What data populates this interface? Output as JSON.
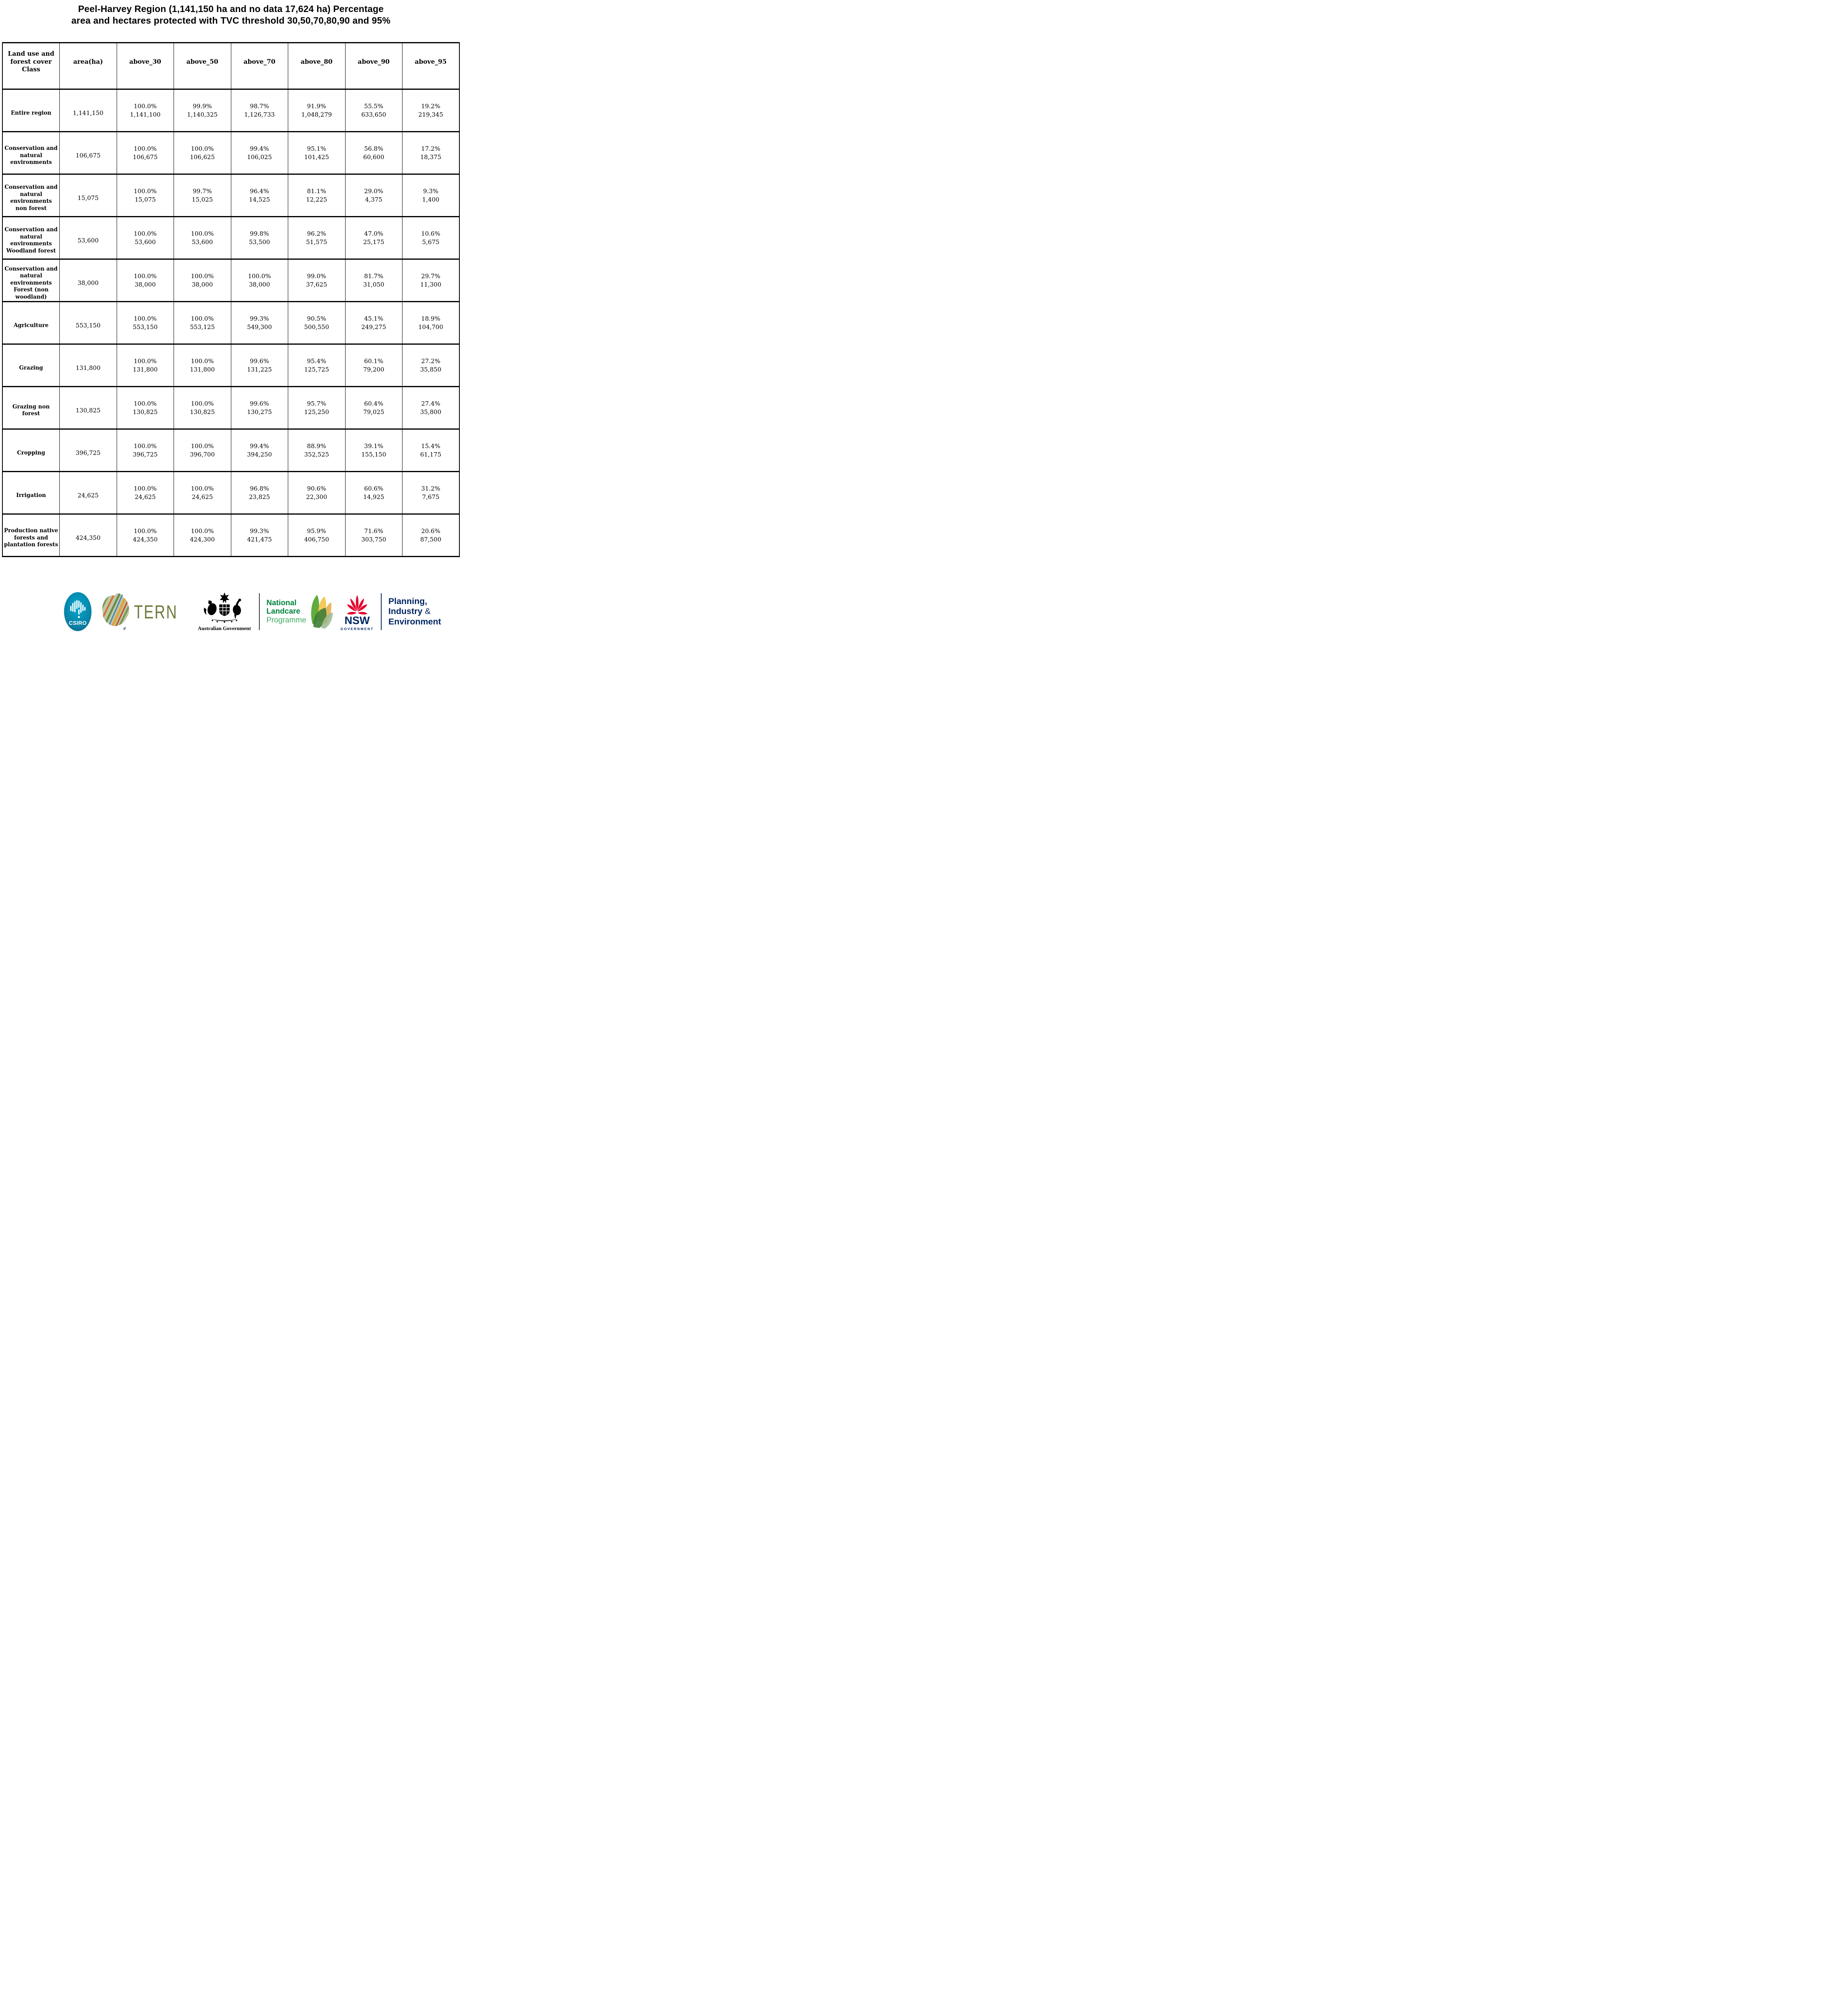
{
  "title": {
    "line1": "Peel-Harvey Region (1,141,150 ha and no data 17,624 ha) Percentage",
    "line2": "area and hectares protected with TVC threshold 30,50,70,80,90 and 95%"
  },
  "chart_data": {
    "type": "table",
    "title": "Peel-Harvey Region (1,141,150 ha and no data 17,624 ha) Percentage area and hectares protected with TVC threshold 30,50,70,80,90 and 95%",
    "columns": [
      "Land use and forest cover Class",
      "area(ha)",
      "above_30",
      "above_50",
      "above_70",
      "above_80",
      "above_90",
      "above_95"
    ],
    "rows": [
      {
        "label": "Entire region",
        "area_ha": "1,141,150",
        "values": [
          {
            "pct": "100.0%",
            "ha": "1,141,100"
          },
          {
            "pct": "99.9%",
            "ha": "1,140,325"
          },
          {
            "pct": "98.7%",
            "ha": "1,126,733"
          },
          {
            "pct": "91.9%",
            "ha": "1,048,279"
          },
          {
            "pct": "55.5%",
            "ha": "633,650"
          },
          {
            "pct": "19.2%",
            "ha": "219,345"
          }
        ]
      },
      {
        "label": "Conservation and natural environments",
        "area_ha": "106,675",
        "values": [
          {
            "pct": "100.0%",
            "ha": "106,675"
          },
          {
            "pct": "100.0%",
            "ha": "106,625"
          },
          {
            "pct": "99.4%",
            "ha": "106,025"
          },
          {
            "pct": "95.1%",
            "ha": "101,425"
          },
          {
            "pct": "56.8%",
            "ha": "60,600"
          },
          {
            "pct": "17.2%",
            "ha": "18,375"
          }
        ]
      },
      {
        "label": "Conservation and natural environments non forest",
        "area_ha": "15,075",
        "values": [
          {
            "pct": "100.0%",
            "ha": "15,075"
          },
          {
            "pct": "99.7%",
            "ha": "15,025"
          },
          {
            "pct": "96.4%",
            "ha": "14,525"
          },
          {
            "pct": "81.1%",
            "ha": "12,225"
          },
          {
            "pct": "29.0%",
            "ha": "4,375"
          },
          {
            "pct": "9.3%",
            "ha": "1,400"
          }
        ]
      },
      {
        "label": "Conservation and natural environments Woodland forest",
        "area_ha": "53,600",
        "values": [
          {
            "pct": "100.0%",
            "ha": "53,600"
          },
          {
            "pct": "100.0%",
            "ha": "53,600"
          },
          {
            "pct": "99.8%",
            "ha": "53,500"
          },
          {
            "pct": "96.2%",
            "ha": "51,575"
          },
          {
            "pct": "47.0%",
            "ha": "25,175"
          },
          {
            "pct": "10.6%",
            "ha": "5,675"
          }
        ]
      },
      {
        "label": "Conservation and natural environments Forest (non woodland)",
        "area_ha": "38,000",
        "values": [
          {
            "pct": "100.0%",
            "ha": "38,000"
          },
          {
            "pct": "100.0%",
            "ha": "38,000"
          },
          {
            "pct": "100.0%",
            "ha": "38,000"
          },
          {
            "pct": "99.0%",
            "ha": "37,625"
          },
          {
            "pct": "81.7%",
            "ha": "31,050"
          },
          {
            "pct": "29.7%",
            "ha": "11,300"
          }
        ]
      },
      {
        "label": "Agriculture",
        "area_ha": "553,150",
        "values": [
          {
            "pct": "100.0%",
            "ha": "553,150"
          },
          {
            "pct": "100.0%",
            "ha": "553,125"
          },
          {
            "pct": "99.3%",
            "ha": "549,300"
          },
          {
            "pct": "90.5%",
            "ha": "500,550"
          },
          {
            "pct": "45.1%",
            "ha": "249,275"
          },
          {
            "pct": "18.9%",
            "ha": "104,700"
          }
        ]
      },
      {
        "label": "Grazing",
        "area_ha": "131,800",
        "values": [
          {
            "pct": "100.0%",
            "ha": "131,800"
          },
          {
            "pct": "100.0%",
            "ha": "131,800"
          },
          {
            "pct": "99.6%",
            "ha": "131,225"
          },
          {
            "pct": "95.4%",
            "ha": "125,725"
          },
          {
            "pct": "60.1%",
            "ha": "79,200"
          },
          {
            "pct": "27.2%",
            "ha": "35,850"
          }
        ]
      },
      {
        "label": "Grazing non forest",
        "area_ha": "130,825",
        "values": [
          {
            "pct": "100.0%",
            "ha": "130,825"
          },
          {
            "pct": "100.0%",
            "ha": "130,825"
          },
          {
            "pct": "99.6%",
            "ha": "130,275"
          },
          {
            "pct": "95.7%",
            "ha": "125,250"
          },
          {
            "pct": "60.4%",
            "ha": "79,025"
          },
          {
            "pct": "27.4%",
            "ha": "35,800"
          }
        ]
      },
      {
        "label": "Cropping",
        "area_ha": "396,725",
        "values": [
          {
            "pct": "100.0%",
            "ha": "396,725"
          },
          {
            "pct": "100.0%",
            "ha": "396,700"
          },
          {
            "pct": "99.4%",
            "ha": "394,250"
          },
          {
            "pct": "88.9%",
            "ha": "352,525"
          },
          {
            "pct": "39.1%",
            "ha": "155,150"
          },
          {
            "pct": "15.4%",
            "ha": "61,175"
          }
        ]
      },
      {
        "label": "Irrigation",
        "area_ha": "24,625",
        "values": [
          {
            "pct": "100.0%",
            "ha": "24,625"
          },
          {
            "pct": "100.0%",
            "ha": "24,625"
          },
          {
            "pct": "96.8%",
            "ha": "23,825"
          },
          {
            "pct": "90.6%",
            "ha": "22,300"
          },
          {
            "pct": "60.6%",
            "ha": "14,925"
          },
          {
            "pct": "31.2%",
            "ha": "7,675"
          }
        ]
      },
      {
        "label": "Production native forests and plantation forests",
        "area_ha": "424,350",
        "values": [
          {
            "pct": "100.0%",
            "ha": "424,350"
          },
          {
            "pct": "100.0%",
            "ha": "424,300"
          },
          {
            "pct": "99.3%",
            "ha": "421,475"
          },
          {
            "pct": "95.9%",
            "ha": "406,750"
          },
          {
            "pct": "71.6%",
            "ha": "303,750"
          },
          {
            "pct": "20.6%",
            "ha": "87,500"
          }
        ]
      }
    ]
  },
  "logos": {
    "csiro": {
      "text": "CSIRO"
    },
    "tern": {
      "text": "TERN"
    },
    "australian_government": {
      "text": "Australian Government"
    },
    "landcare": {
      "line1": "National",
      "line2": "Landcare",
      "line3": "Programme"
    },
    "nsw": {
      "text": "NSW",
      "subtext": "GOVERNMENT"
    },
    "planning": {
      "line1": "Planning,",
      "line2": "Industry",
      "amp": "&",
      "line3": "Environment"
    }
  },
  "colors": {
    "csiro_teal": "#00a9ce",
    "csiro_teal_dark": "#00607f",
    "tern_olive": "#6f7b3c",
    "landcare_green": "#00843d",
    "landcare_light_green": "#3fae62",
    "nsw_red": "#e4002b",
    "nsw_navy": "#002664",
    "table_border": "#000000"
  }
}
